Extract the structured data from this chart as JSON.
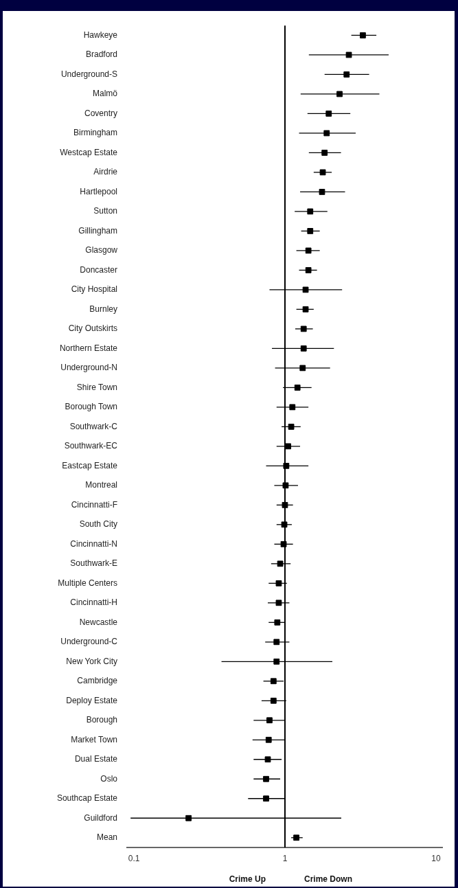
{
  "chart_data": {
    "type": "scatter",
    "orientation": "horizontal",
    "log": "x",
    "grid": false,
    "legend": false,
    "marker": "square",
    "categories": [
      "Hawkeye",
      "Bradford",
      "Underground-S",
      "Malmö",
      "Coventry",
      "Birmingham",
      "Westcap Estate",
      "Airdrie",
      "Hartlepool",
      "Sutton",
      "Gillingham",
      "Glasgow",
      "Doncaster",
      "City Hospital",
      "Burnley",
      "City Outskirts",
      "Northern Estate",
      "Underground-N",
      "Shire Town",
      "Borough Town",
      "Southwark-C",
      "Southwark-EC",
      "Eastcap Estate",
      "Montreal",
      "Cincinnatti-F",
      "South City",
      "Cincinnatti-N",
      "Southwark-E",
      "Multiple Centers",
      "Cincinnatti-H",
      "Newcastle",
      "Underground-C",
      "New York City",
      "Cambridge",
      "Deploy Estate",
      "Borough",
      "Market Town",
      "Dual Estate",
      "Oslo",
      "Southcap Estate",
      "Guildford",
      "Mean"
    ],
    "series": [
      {
        "color": "#000000",
        "values": [
          3.28,
          2.65,
          2.56,
          2.3,
          1.95,
          1.89,
          1.83,
          1.78,
          1.76,
          1.47,
          1.47,
          1.43,
          1.43,
          1.37,
          1.37,
          1.33,
          1.33,
          1.31,
          1.21,
          1.12,
          1.1,
          1.05,
          1.02,
          1.01,
          1.0,
          0.99,
          0.98,
          0.93,
          0.91,
          0.91,
          0.89,
          0.88,
          0.88,
          0.84,
          0.84,
          0.79,
          0.78,
          0.77,
          0.75,
          0.75,
          0.23,
          1.19
        ],
        "errors": [
          [
            2.75,
            4.03
          ],
          [
            1.44,
            4.86
          ],
          [
            1.83,
            3.61
          ],
          [
            1.27,
            4.22
          ],
          [
            1.41,
            2.71
          ],
          [
            1.24,
            2.94
          ],
          [
            1.44,
            2.35
          ],
          [
            1.55,
            2.04
          ],
          [
            1.26,
            2.5
          ],
          [
            1.16,
            1.91
          ],
          [
            1.28,
            1.7
          ],
          [
            1.19,
            1.7
          ],
          [
            1.24,
            1.63
          ],
          [
            0.79,
            2.39
          ],
          [
            1.19,
            1.55
          ],
          [
            1.17,
            1.53
          ],
          [
            0.82,
            2.11
          ],
          [
            0.86,
            1.99
          ],
          [
            0.97,
            1.5
          ],
          [
            0.88,
            1.43
          ],
          [
            0.95,
            1.27
          ],
          [
            0.88,
            1.26
          ],
          [
            0.75,
            1.43
          ],
          [
            0.85,
            1.22
          ],
          [
            0.88,
            1.13
          ],
          [
            0.88,
            1.11
          ],
          [
            0.85,
            1.13
          ],
          [
            0.81,
            1.09
          ],
          [
            0.78,
            1.03
          ],
          [
            0.77,
            1.07
          ],
          [
            0.78,
            0.99
          ],
          [
            0.74,
            1.07
          ],
          [
            0.38,
            2.06
          ],
          [
            0.72,
            0.98
          ],
          [
            0.7,
            1.02
          ],
          [
            0.62,
            1.0
          ],
          [
            0.61,
            1.0
          ],
          [
            0.62,
            0.95
          ],
          [
            0.62,
            0.93
          ],
          [
            0.57,
            1.0
          ],
          [
            0.095,
            2.36
          ],
          [
            1.1,
            1.31
          ]
        ]
      }
    ],
    "xlim": [
      0.09,
      11
    ],
    "xticks": [
      0.1,
      1,
      10
    ],
    "ref_lines": [
      {
        "axis": "x",
        "value": 1,
        "color": "#000000"
      }
    ],
    "annotations": [
      "Crime Up",
      "Crime Down"
    ]
  }
}
